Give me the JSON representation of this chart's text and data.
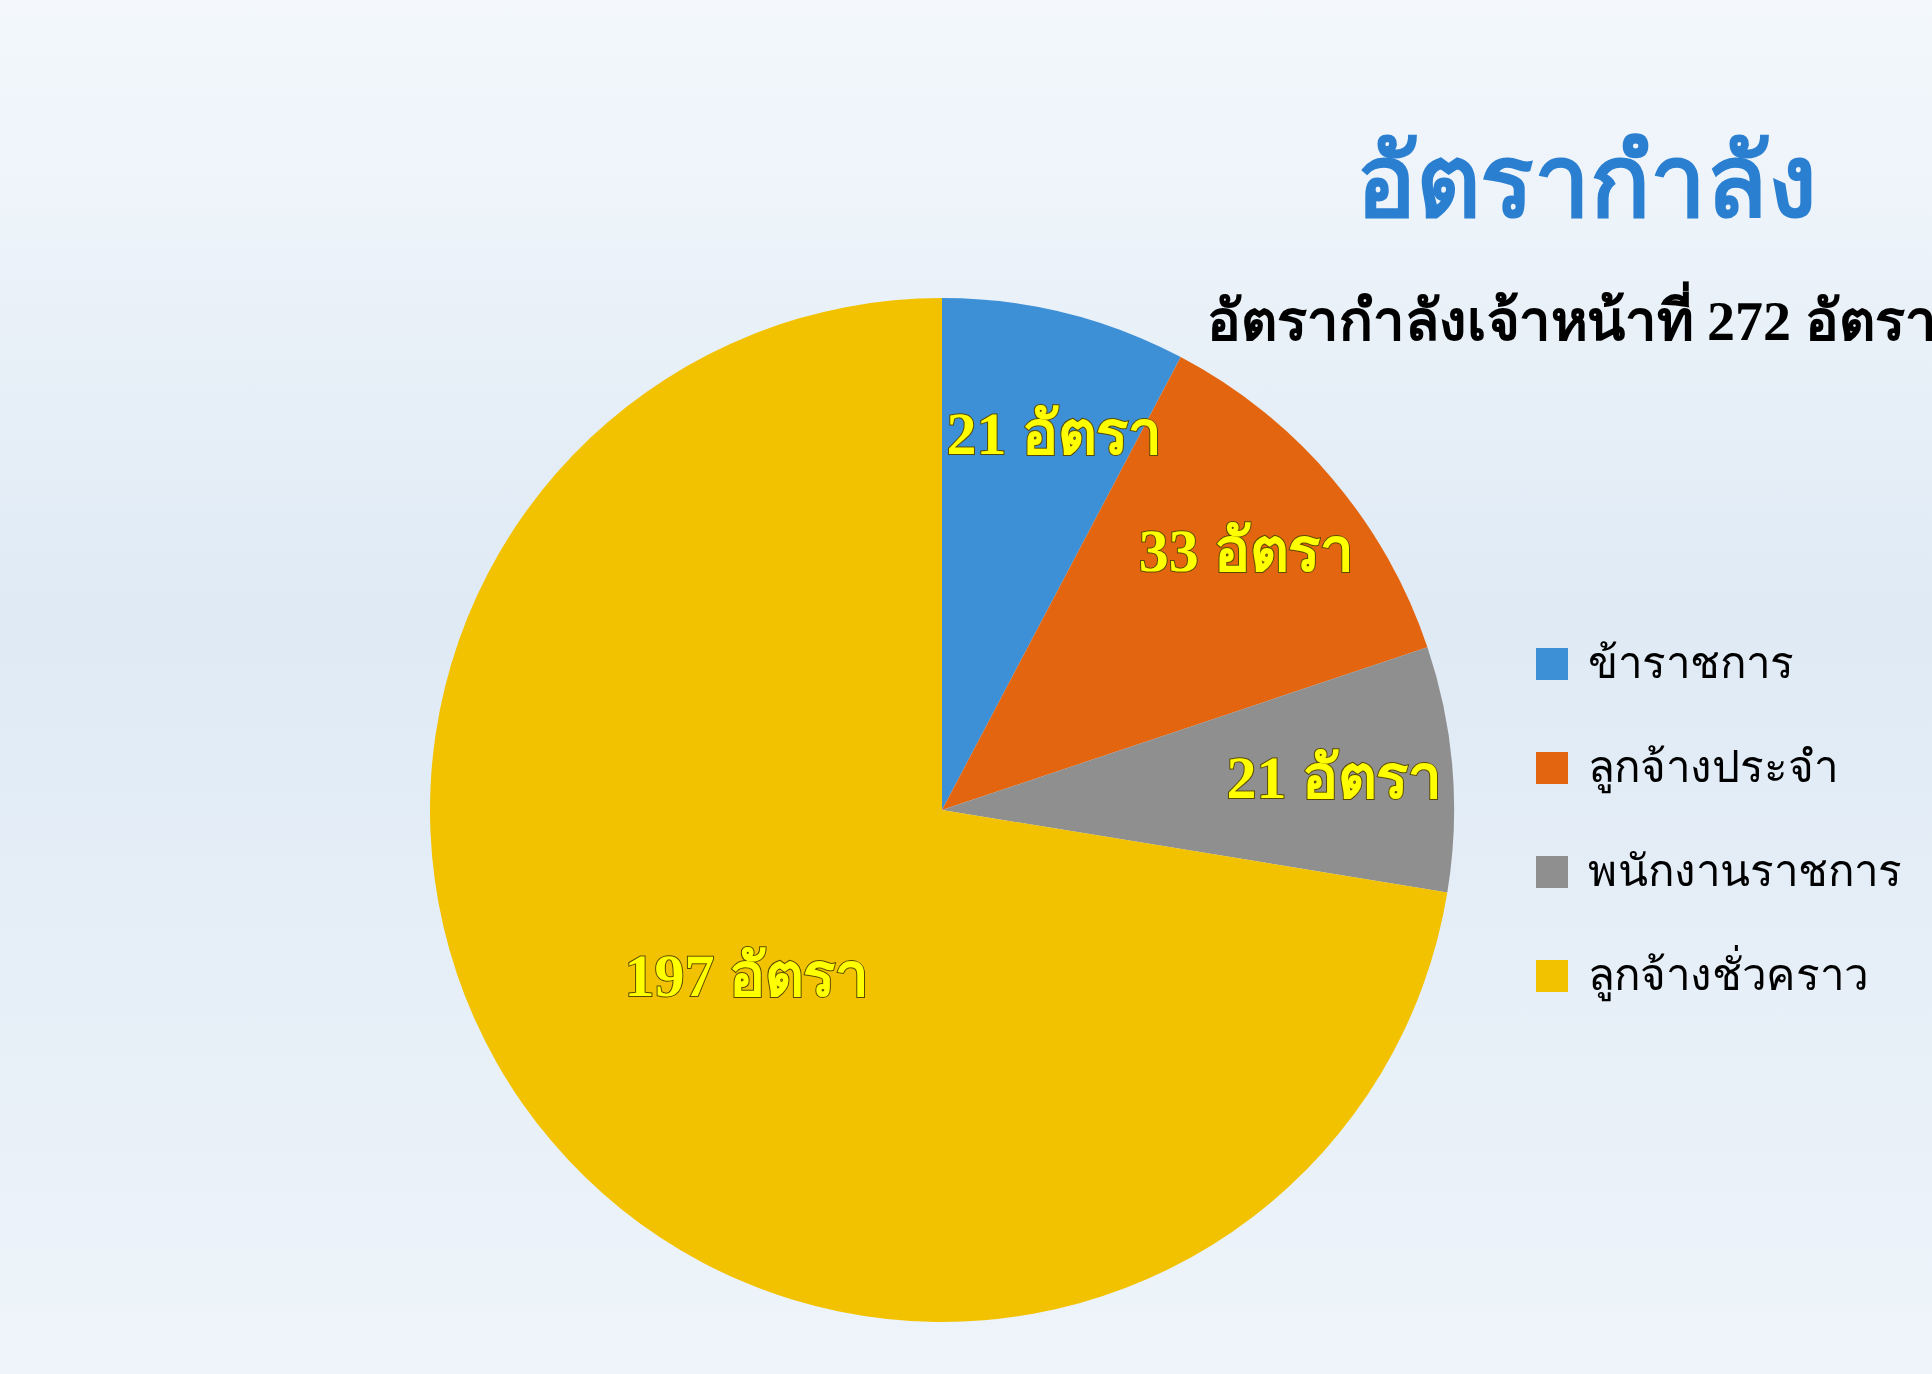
{
  "chart_data": {
    "type": "pie",
    "title": "อัตรากำลัง",
    "subtitle": "อัตรากำลังเจ้าหน้าที่ 272 อัตรา",
    "categories": [
      "ข้าราชการ",
      "ลูกจ้างประจำ",
      "พนักงานราชการ",
      "ลูกจ้างชั่วคราว"
    ],
    "values": [
      21,
      33,
      21,
      197
    ],
    "colors": [
      "#3d8fd6",
      "#e4650f",
      "#8f8f8f",
      "#f2c200"
    ],
    "value_labels": [
      "21 อัตรา",
      "33 อัตรา",
      "21 อัตรา",
      "197 อัตรา"
    ],
    "legend": "right"
  }
}
